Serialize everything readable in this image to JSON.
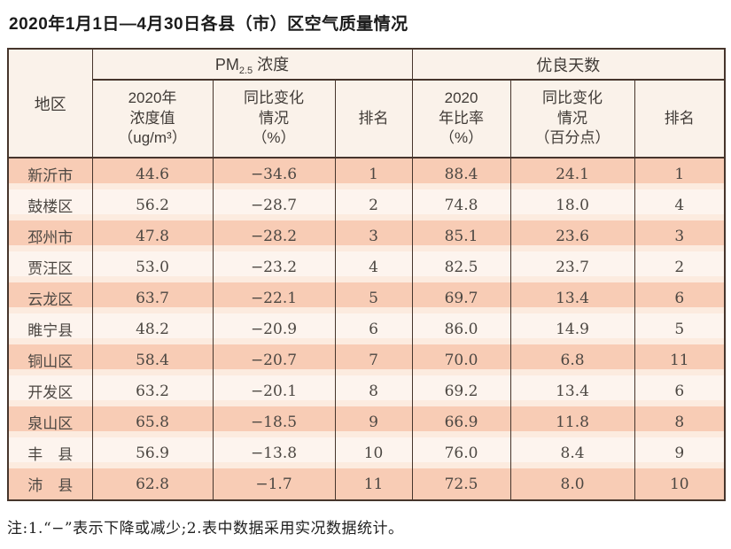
{
  "page": {
    "title": "2020年1月1日—4月30日各县（市）区空气质量情况",
    "note": "注:1.“−”表示下降或减少;2.表中数据采用实况数据统计。"
  },
  "table": {
    "region_header": "地区",
    "pm_group": {
      "main": "PM",
      "sub": "2.5",
      "rest": " 浓度"
    },
    "good_group": "优良天数",
    "subheaders": {
      "pm_value": "2020年\n浓度值\n（ug/m³）",
      "pm_change": "同比变化\n情况\n（%）",
      "pm_rank": "排名",
      "good_ratio": "2020\n年比率\n（%）",
      "good_change": "同比变化\n情况\n（百分点）",
      "good_rank": "排名"
    },
    "rows": [
      {
        "region": "新沂市",
        "pm_value": "44.6",
        "pm_change": "−34.6",
        "pm_rank": "1",
        "good_ratio": "88.4",
        "good_change": "24.1",
        "good_rank": "1"
      },
      {
        "region": "鼓楼区",
        "pm_value": "56.2",
        "pm_change": "−28.7",
        "pm_rank": "2",
        "good_ratio": "74.8",
        "good_change": "18.0",
        "good_rank": "4"
      },
      {
        "region": "邳州市",
        "pm_value": "47.8",
        "pm_change": "−28.2",
        "pm_rank": "3",
        "good_ratio": "85.1",
        "good_change": "23.6",
        "good_rank": "3"
      },
      {
        "region": "贾汪区",
        "pm_value": "53.0",
        "pm_change": "−23.2",
        "pm_rank": "4",
        "good_ratio": "82.5",
        "good_change": "23.7",
        "good_rank": "2"
      },
      {
        "region": "云龙区",
        "pm_value": "63.7",
        "pm_change": "−22.1",
        "pm_rank": "5",
        "good_ratio": "69.7",
        "good_change": "13.4",
        "good_rank": "6"
      },
      {
        "region": "睢宁县",
        "pm_value": "48.2",
        "pm_change": "−20.9",
        "pm_rank": "6",
        "good_ratio": "86.0",
        "good_change": "14.9",
        "good_rank": "5"
      },
      {
        "region": "铜山区",
        "pm_value": "58.4",
        "pm_change": "−20.7",
        "pm_rank": "7",
        "good_ratio": "70.0",
        "good_change": "6.8",
        "good_rank": "11"
      },
      {
        "region": "开发区",
        "pm_value": "63.2",
        "pm_change": "−20.1",
        "pm_rank": "8",
        "good_ratio": "69.2",
        "good_change": "13.4",
        "good_rank": "6"
      },
      {
        "region": "泉山区",
        "pm_value": "65.8",
        "pm_change": "−18.5",
        "pm_rank": "9",
        "good_ratio": "66.9",
        "good_change": "11.8",
        "good_rank": "8"
      },
      {
        "region": "丰　县",
        "pm_value": "56.9",
        "pm_change": "−13.8",
        "pm_rank": "10",
        "good_ratio": "76.0",
        "good_change": "8.4",
        "good_rank": "9"
      },
      {
        "region": "沛　县",
        "pm_value": "62.8",
        "pm_change": "−1.7",
        "pm_rank": "11",
        "good_ratio": "72.5",
        "good_change": "8.0",
        "good_rank": "10"
      }
    ]
  },
  "chart_data": {
    "type": "table",
    "title": "2020年1月1日—4月30日各县（市）区空气质量情况",
    "columns": [
      "地区",
      "PM2.5 2020年浓度值(ug/m³)",
      "PM2.5 同比变化情况(%)",
      "PM2.5 排名",
      "优良天数 2020年比率(%)",
      "优良天数 同比变化情况(百分点)",
      "优良天数 排名"
    ],
    "rows": [
      [
        "新沂市",
        44.6,
        -34.6,
        1,
        88.4,
        24.1,
        1
      ],
      [
        "鼓楼区",
        56.2,
        -28.7,
        2,
        74.8,
        18.0,
        4
      ],
      [
        "邳州市",
        47.8,
        -28.2,
        3,
        85.1,
        23.6,
        3
      ],
      [
        "贾汪区",
        53.0,
        -23.2,
        4,
        82.5,
        23.7,
        2
      ],
      [
        "云龙区",
        63.7,
        -22.1,
        5,
        69.7,
        13.4,
        6
      ],
      [
        "睢宁县",
        48.2,
        -20.9,
        6,
        86.0,
        14.9,
        5
      ],
      [
        "铜山区",
        58.4,
        -20.7,
        7,
        70.0,
        6.8,
        11
      ],
      [
        "开发区",
        63.2,
        -20.1,
        8,
        69.2,
        13.4,
        6
      ],
      [
        "泉山区",
        65.8,
        -18.5,
        9,
        66.9,
        11.8,
        8
      ],
      [
        "丰县",
        56.9,
        -13.8,
        10,
        76.0,
        8.4,
        9
      ],
      [
        "沛县",
        62.8,
        -1.7,
        11,
        72.5,
        8.0,
        10
      ]
    ]
  },
  "colors": {
    "row_odd": "#f8ccb5",
    "row_even": "#fdf4ee",
    "row_gap": "#fcebdf",
    "header_bg": "#faf2ea",
    "border": "#46352c",
    "data_text": "#4c4742",
    "title_text": "#1b1b1b"
  }
}
